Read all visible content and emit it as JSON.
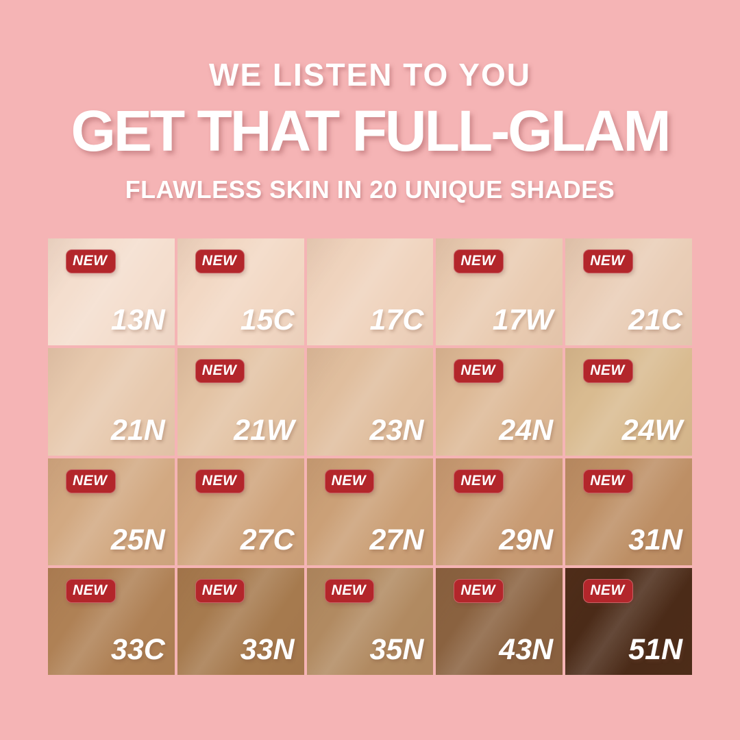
{
  "header": {
    "line1": "WE LISTEN TO YOU",
    "line2": "GET THAT FULL-GLAM",
    "line3": "FLAWLESS SKIN IN 20 UNIQUE SHADES"
  },
  "badge_label": "NEW",
  "colors": {
    "background": "#F5B4B5",
    "badge_red": "#B3262B",
    "headline_text": "#FFFFFF",
    "shade_label_text": "#FFFFFF"
  },
  "shade_count": 20,
  "grid": {
    "columns": 5,
    "rows": 4
  },
  "shades": [
    {
      "code": "13N",
      "new": true,
      "color": "#F4DECE"
    },
    {
      "code": "15C",
      "new": true,
      "color": "#F2D8C4"
    },
    {
      "code": "17C",
      "new": false,
      "color": "#EFD3BD"
    },
    {
      "code": "17W",
      "new": true,
      "color": "#E9CBB1"
    },
    {
      "code": "21C",
      "new": true,
      "color": "#E9CDB6"
    },
    {
      "code": "21N",
      "new": false,
      "color": "#E7C9AE"
    },
    {
      "code": "21W",
      "new": true,
      "color": "#E3C3A4"
    },
    {
      "code": "23N",
      "new": false,
      "color": "#E0BE9E"
    },
    {
      "code": "24N",
      "new": true,
      "color": "#DDB996"
    },
    {
      "code": "24W",
      "new": true,
      "color": "#D9BB90"
    },
    {
      "code": "25N",
      "new": true,
      "color": "#D2A982"
    },
    {
      "code": "27C",
      "new": true,
      "color": "#CFA47C"
    },
    {
      "code": "27N",
      "new": true,
      "color": "#CBA077"
    },
    {
      "code": "29N",
      "new": true,
      "color": "#C89B73"
    },
    {
      "code": "31N",
      "new": true,
      "color": "#BD8F65"
    },
    {
      "code": "33C",
      "new": true,
      "color": "#AF8155"
    },
    {
      "code": "33N",
      "new": true,
      "color": "#A67A4E"
    },
    {
      "code": "35N",
      "new": true,
      "color": "#B18A61"
    },
    {
      "code": "43N",
      "new": true,
      "color": "#8A6240"
    },
    {
      "code": "51N",
      "new": true,
      "color": "#4B2B18"
    }
  ]
}
